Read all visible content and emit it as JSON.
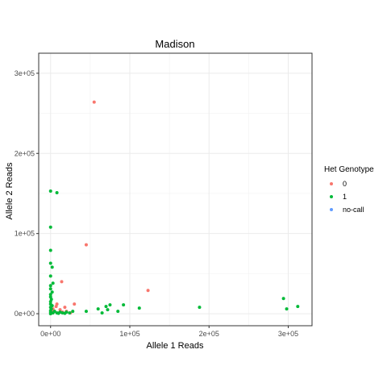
{
  "chart_data": {
    "type": "scatter",
    "title": "Madison",
    "xlabel": "Allele 1 Reads",
    "ylabel": "Allele 2 Reads",
    "xlim": [
      -15000,
      330000
    ],
    "ylim": [
      -15000,
      325000
    ],
    "x_ticks": [
      0,
      100000,
      200000,
      300000
    ],
    "x_tick_labels": [
      "0e+00",
      "1e+05",
      "2e+05",
      "3e+05"
    ],
    "y_ticks": [
      0,
      100000,
      200000,
      300000
    ],
    "y_tick_labels": [
      "0e+00",
      "1e+05",
      "2e+05",
      "3e+05"
    ],
    "grid": true,
    "legend": {
      "title": "Het Genotype",
      "position": "right"
    },
    "series": [
      {
        "name": "0",
        "color": "#f8766d",
        "points": [
          [
            55000,
            264000
          ],
          [
            45000,
            86000
          ],
          [
            123000,
            29000
          ],
          [
            14000,
            40000
          ],
          [
            8000,
            12000
          ],
          [
            12000,
            5000
          ],
          [
            15000,
            2000
          ],
          [
            18000,
            8000
          ],
          [
            5000,
            3000
          ],
          [
            10000,
            1000
          ],
          [
            20000,
            3000
          ],
          [
            3000,
            6000
          ],
          [
            7000,
            9000
          ],
          [
            25000,
            1000
          ],
          [
            30000,
            12000
          ],
          [
            2000,
            2000
          ]
        ]
      },
      {
        "name": "1",
        "color": "#00ba38",
        "points": [
          [
            0,
            153000
          ],
          [
            8000,
            151000
          ],
          [
            0,
            108000
          ],
          [
            0,
            79000
          ],
          [
            0,
            63000
          ],
          [
            2000,
            58000
          ],
          [
            0,
            47000
          ],
          [
            3000,
            38000
          ],
          [
            0,
            35000
          ],
          [
            0,
            31000
          ],
          [
            2000,
            27000
          ],
          [
            0,
            24000
          ],
          [
            0,
            21000
          ],
          [
            1000,
            18000
          ],
          [
            0,
            15000
          ],
          [
            0,
            12000
          ],
          [
            2000,
            10000
          ],
          [
            0,
            8000
          ],
          [
            1000,
            6000
          ],
          [
            0,
            4000
          ],
          [
            0,
            2000
          ],
          [
            0,
            0
          ],
          [
            3000,
            1000
          ],
          [
            5000,
            3000
          ],
          [
            8000,
            1000
          ],
          [
            10000,
            500
          ],
          [
            12000,
            2000
          ],
          [
            15000,
            1000
          ],
          [
            18000,
            500
          ],
          [
            20000,
            2000
          ],
          [
            24000,
            1000
          ],
          [
            28000,
            3000
          ],
          [
            45000,
            3000
          ],
          [
            60000,
            6000
          ],
          [
            65000,
            1000
          ],
          [
            70000,
            9000
          ],
          [
            72000,
            5000
          ],
          [
            75000,
            11000
          ],
          [
            85000,
            3000
          ],
          [
            92000,
            11000
          ],
          [
            112000,
            7000
          ],
          [
            188000,
            8000
          ],
          [
            294000,
            19000
          ],
          [
            298000,
            6000
          ],
          [
            312000,
            9000
          ]
        ]
      },
      {
        "name": "no-call",
        "color": "#619cff",
        "points": []
      }
    ]
  }
}
